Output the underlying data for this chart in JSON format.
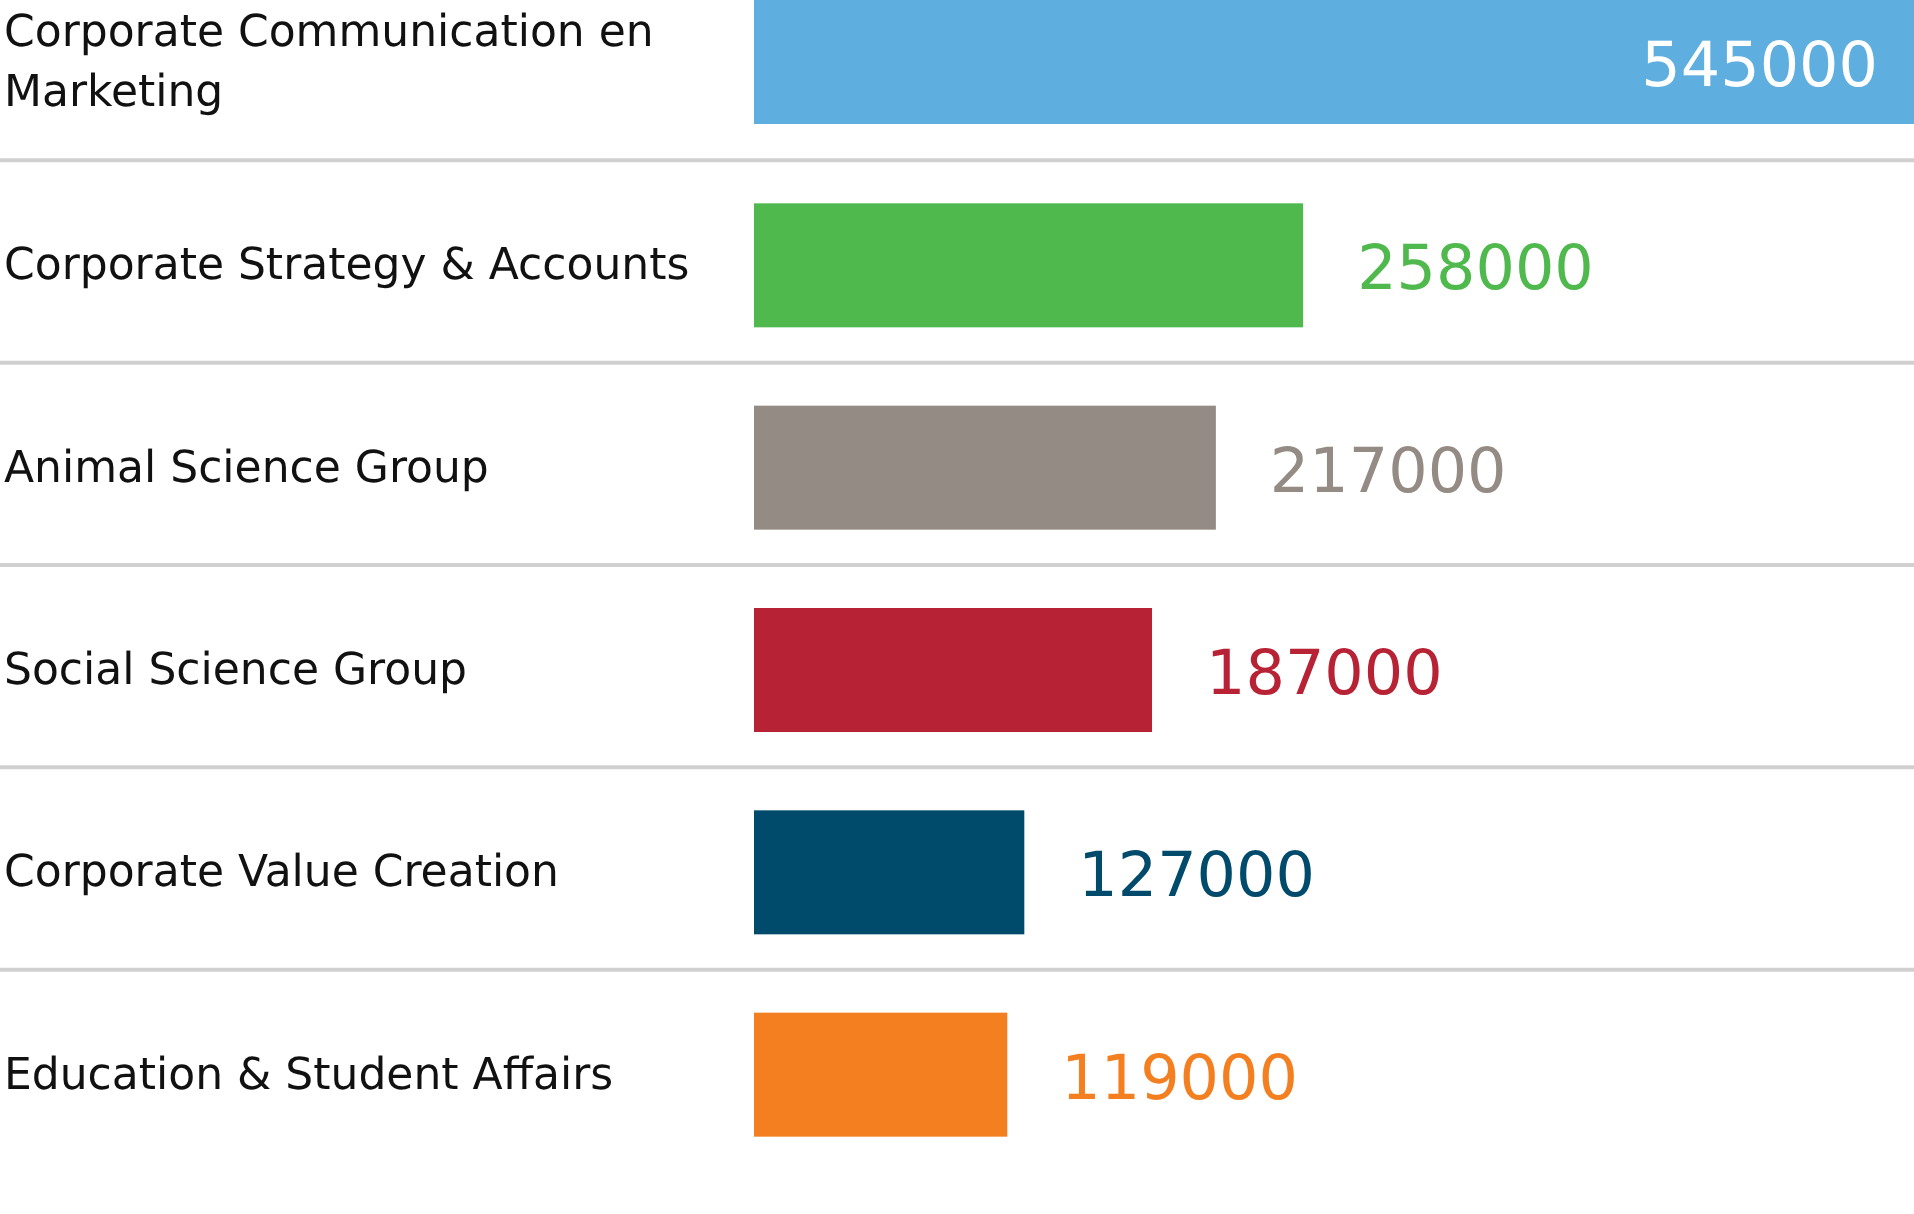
{
  "chart_data": {
    "type": "bar",
    "orientation": "horizontal",
    "categories": [
      "Corporate Communication en Marketing",
      "Corporate Strategy & Accounts",
      "Animal Science Group",
      "Social Science Group",
      "Corporate Value Creation",
      "Education & Student Affairs"
    ],
    "values": [
      545000,
      258000,
      217000,
      187000,
      127000,
      119000
    ],
    "colors": [
      "#5eaee0",
      "#50b94d",
      "#948b84",
      "#b82235",
      "#004a6b",
      "#f47f20"
    ],
    "xlim": [
      0,
      545000
    ],
    "data_labels": true,
    "tick_labels": "y"
  }
}
